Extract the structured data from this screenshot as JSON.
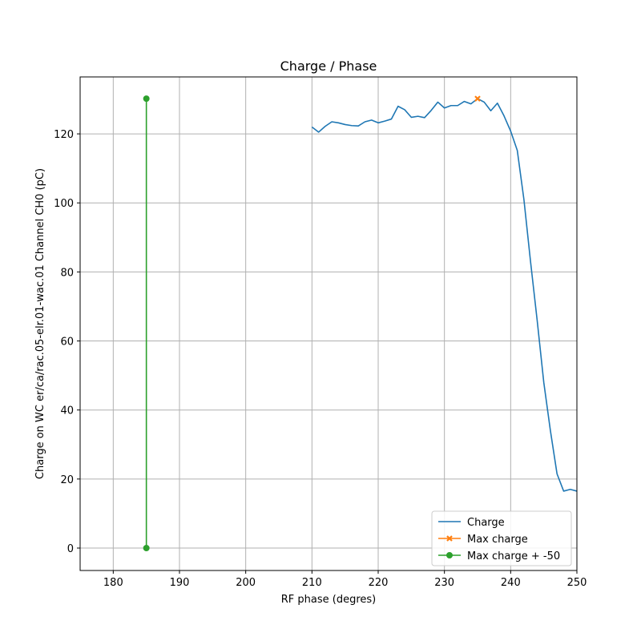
{
  "chart_data": {
    "type": "line",
    "title": "Charge / Phase",
    "xlabel": "RF phase (degres)",
    "ylabel": "Charge on WC er/ca/rac.05-elr.01-wac.01 Channel CH0 (pC)",
    "xlim": [
      175,
      250
    ],
    "ylim": [
      -6.5,
      136.5
    ],
    "xticks": [
      180,
      190,
      200,
      210,
      220,
      230,
      240,
      250
    ],
    "yticks": [
      0,
      20,
      40,
      60,
      80,
      100,
      120
    ],
    "grid": true,
    "legend_position": "lower-right",
    "series": [
      {
        "name": "Charge",
        "color": "#1f77b4",
        "marker": "none",
        "x": [
          210,
          211,
          212,
          213,
          214,
          215,
          216,
          217,
          218,
          219,
          220,
          221,
          222,
          223,
          224,
          225,
          226,
          227,
          228,
          229,
          230,
          231,
          232,
          233,
          234,
          235,
          236,
          237,
          238,
          239,
          240,
          241,
          242,
          243,
          244,
          245,
          246,
          247,
          248,
          249,
          250
        ],
        "y": [
          122,
          120.5,
          122.2,
          123.5,
          123.2,
          122.7,
          122.4,
          122.3,
          123.5,
          124,
          123.2,
          123.7,
          124.3,
          128,
          127,
          124.8,
          125.1,
          124.7,
          126.8,
          129.2,
          127.5,
          128.2,
          128.2,
          129.4,
          128.7,
          130.2,
          129.2,
          126.7,
          128.9,
          125.2,
          120.8,
          115.2,
          101,
          83,
          66,
          48,
          34,
          21.5,
          16.5,
          17,
          16.5
        ]
      },
      {
        "name": "Max charge",
        "color": "#ff7f0e",
        "marker": "x",
        "x": [
          235
        ],
        "y": [
          130.2
        ]
      },
      {
        "name": "Max charge + -50",
        "color": "#2ca02c",
        "marker": "o",
        "x": [
          185,
          185
        ],
        "y": [
          0,
          130.2
        ]
      }
    ]
  }
}
